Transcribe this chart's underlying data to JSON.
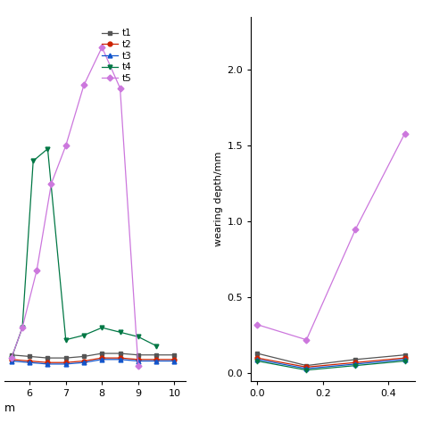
{
  "left_plot": {
    "xlabel": "m",
    "xlim": [
      5.3,
      10.3
    ],
    "ylim": [
      -0.05,
      2.35
    ],
    "xticks": [
      6,
      7,
      8,
      9,
      10
    ],
    "series": {
      "t1": {
        "color": "#555555",
        "marker": "s",
        "x": [
          5.5,
          6.0,
          6.5,
          7.0,
          7.5,
          8.0,
          8.5,
          9.0,
          9.5,
          10.0
        ],
        "y": [
          0.12,
          0.11,
          0.1,
          0.1,
          0.11,
          0.13,
          0.13,
          0.12,
          0.12,
          0.12
        ]
      },
      "t2": {
        "color": "#cc2200",
        "marker": "o",
        "x": [
          5.5,
          6.0,
          6.5,
          7.0,
          7.5,
          8.0,
          8.5,
          9.0,
          9.5,
          10.0
        ],
        "y": [
          0.09,
          0.08,
          0.07,
          0.07,
          0.08,
          0.1,
          0.1,
          0.09,
          0.09,
          0.09
        ]
      },
      "t3": {
        "color": "#1155cc",
        "marker": "^",
        "x": [
          5.5,
          6.0,
          6.5,
          7.0,
          7.5,
          8.0,
          8.5,
          9.0,
          9.5,
          10.0
        ],
        "y": [
          0.08,
          0.07,
          0.06,
          0.06,
          0.07,
          0.09,
          0.09,
          0.08,
          0.08,
          0.08
        ]
      },
      "t4": {
        "color": "#007744",
        "marker": "v",
        "x": [
          5.5,
          5.8,
          6.1,
          6.5,
          7.0,
          7.5,
          8.0,
          8.5,
          9.0,
          9.5
        ],
        "y": [
          0.1,
          0.3,
          1.4,
          1.48,
          0.22,
          0.25,
          0.3,
          0.27,
          0.24,
          0.18
        ]
      },
      "t5": {
        "color": "#cc77dd",
        "marker": "D",
        "x": [
          5.5,
          5.8,
          6.2,
          6.6,
          7.0,
          7.5,
          8.0,
          8.5,
          9.0
        ],
        "y": [
          0.1,
          0.3,
          0.68,
          1.25,
          1.5,
          1.9,
          2.15,
          1.88,
          0.05
        ]
      }
    }
  },
  "right_plot": {
    "ylabel": "wearing depth/mm",
    "xlim": [
      -0.02,
      0.48
    ],
    "ylim": [
      -0.05,
      2.35
    ],
    "yticks": [
      0.0,
      0.5,
      1.0,
      1.5,
      2.0
    ],
    "xticks": [
      0.0,
      0.2,
      0.4
    ],
    "series": {
      "t1": {
        "color": "#555555",
        "marker": "s",
        "x": [
          0.0,
          0.15,
          0.3,
          0.45
        ],
        "y": [
          0.13,
          0.05,
          0.09,
          0.12
        ]
      },
      "t2": {
        "color": "#cc2200",
        "marker": "o",
        "x": [
          0.0,
          0.15,
          0.3,
          0.45
        ],
        "y": [
          0.1,
          0.04,
          0.07,
          0.1
        ]
      },
      "t3": {
        "color": "#1155cc",
        "marker": "^",
        "x": [
          0.0,
          0.15,
          0.3,
          0.45
        ],
        "y": [
          0.09,
          0.03,
          0.06,
          0.09
        ]
      },
      "t4": {
        "color": "#007744",
        "marker": "v",
        "x": [
          0.0,
          0.15,
          0.3,
          0.45
        ],
        "y": [
          0.08,
          0.02,
          0.05,
          0.08
        ]
      },
      "t5": {
        "color": "#cc77dd",
        "marker": "D",
        "x": [
          0.0,
          0.15,
          0.3,
          0.45
        ],
        "y": [
          0.32,
          0.22,
          0.95,
          1.58
        ]
      }
    }
  },
  "legend_labels": [
    "t1",
    "t2",
    "t3",
    "t4",
    "t5"
  ],
  "legend_colors": [
    "#555555",
    "#cc2200",
    "#1155cc",
    "#007744",
    "#cc77dd"
  ],
  "legend_markers": [
    "s",
    "o",
    "^",
    "v",
    "D"
  ]
}
